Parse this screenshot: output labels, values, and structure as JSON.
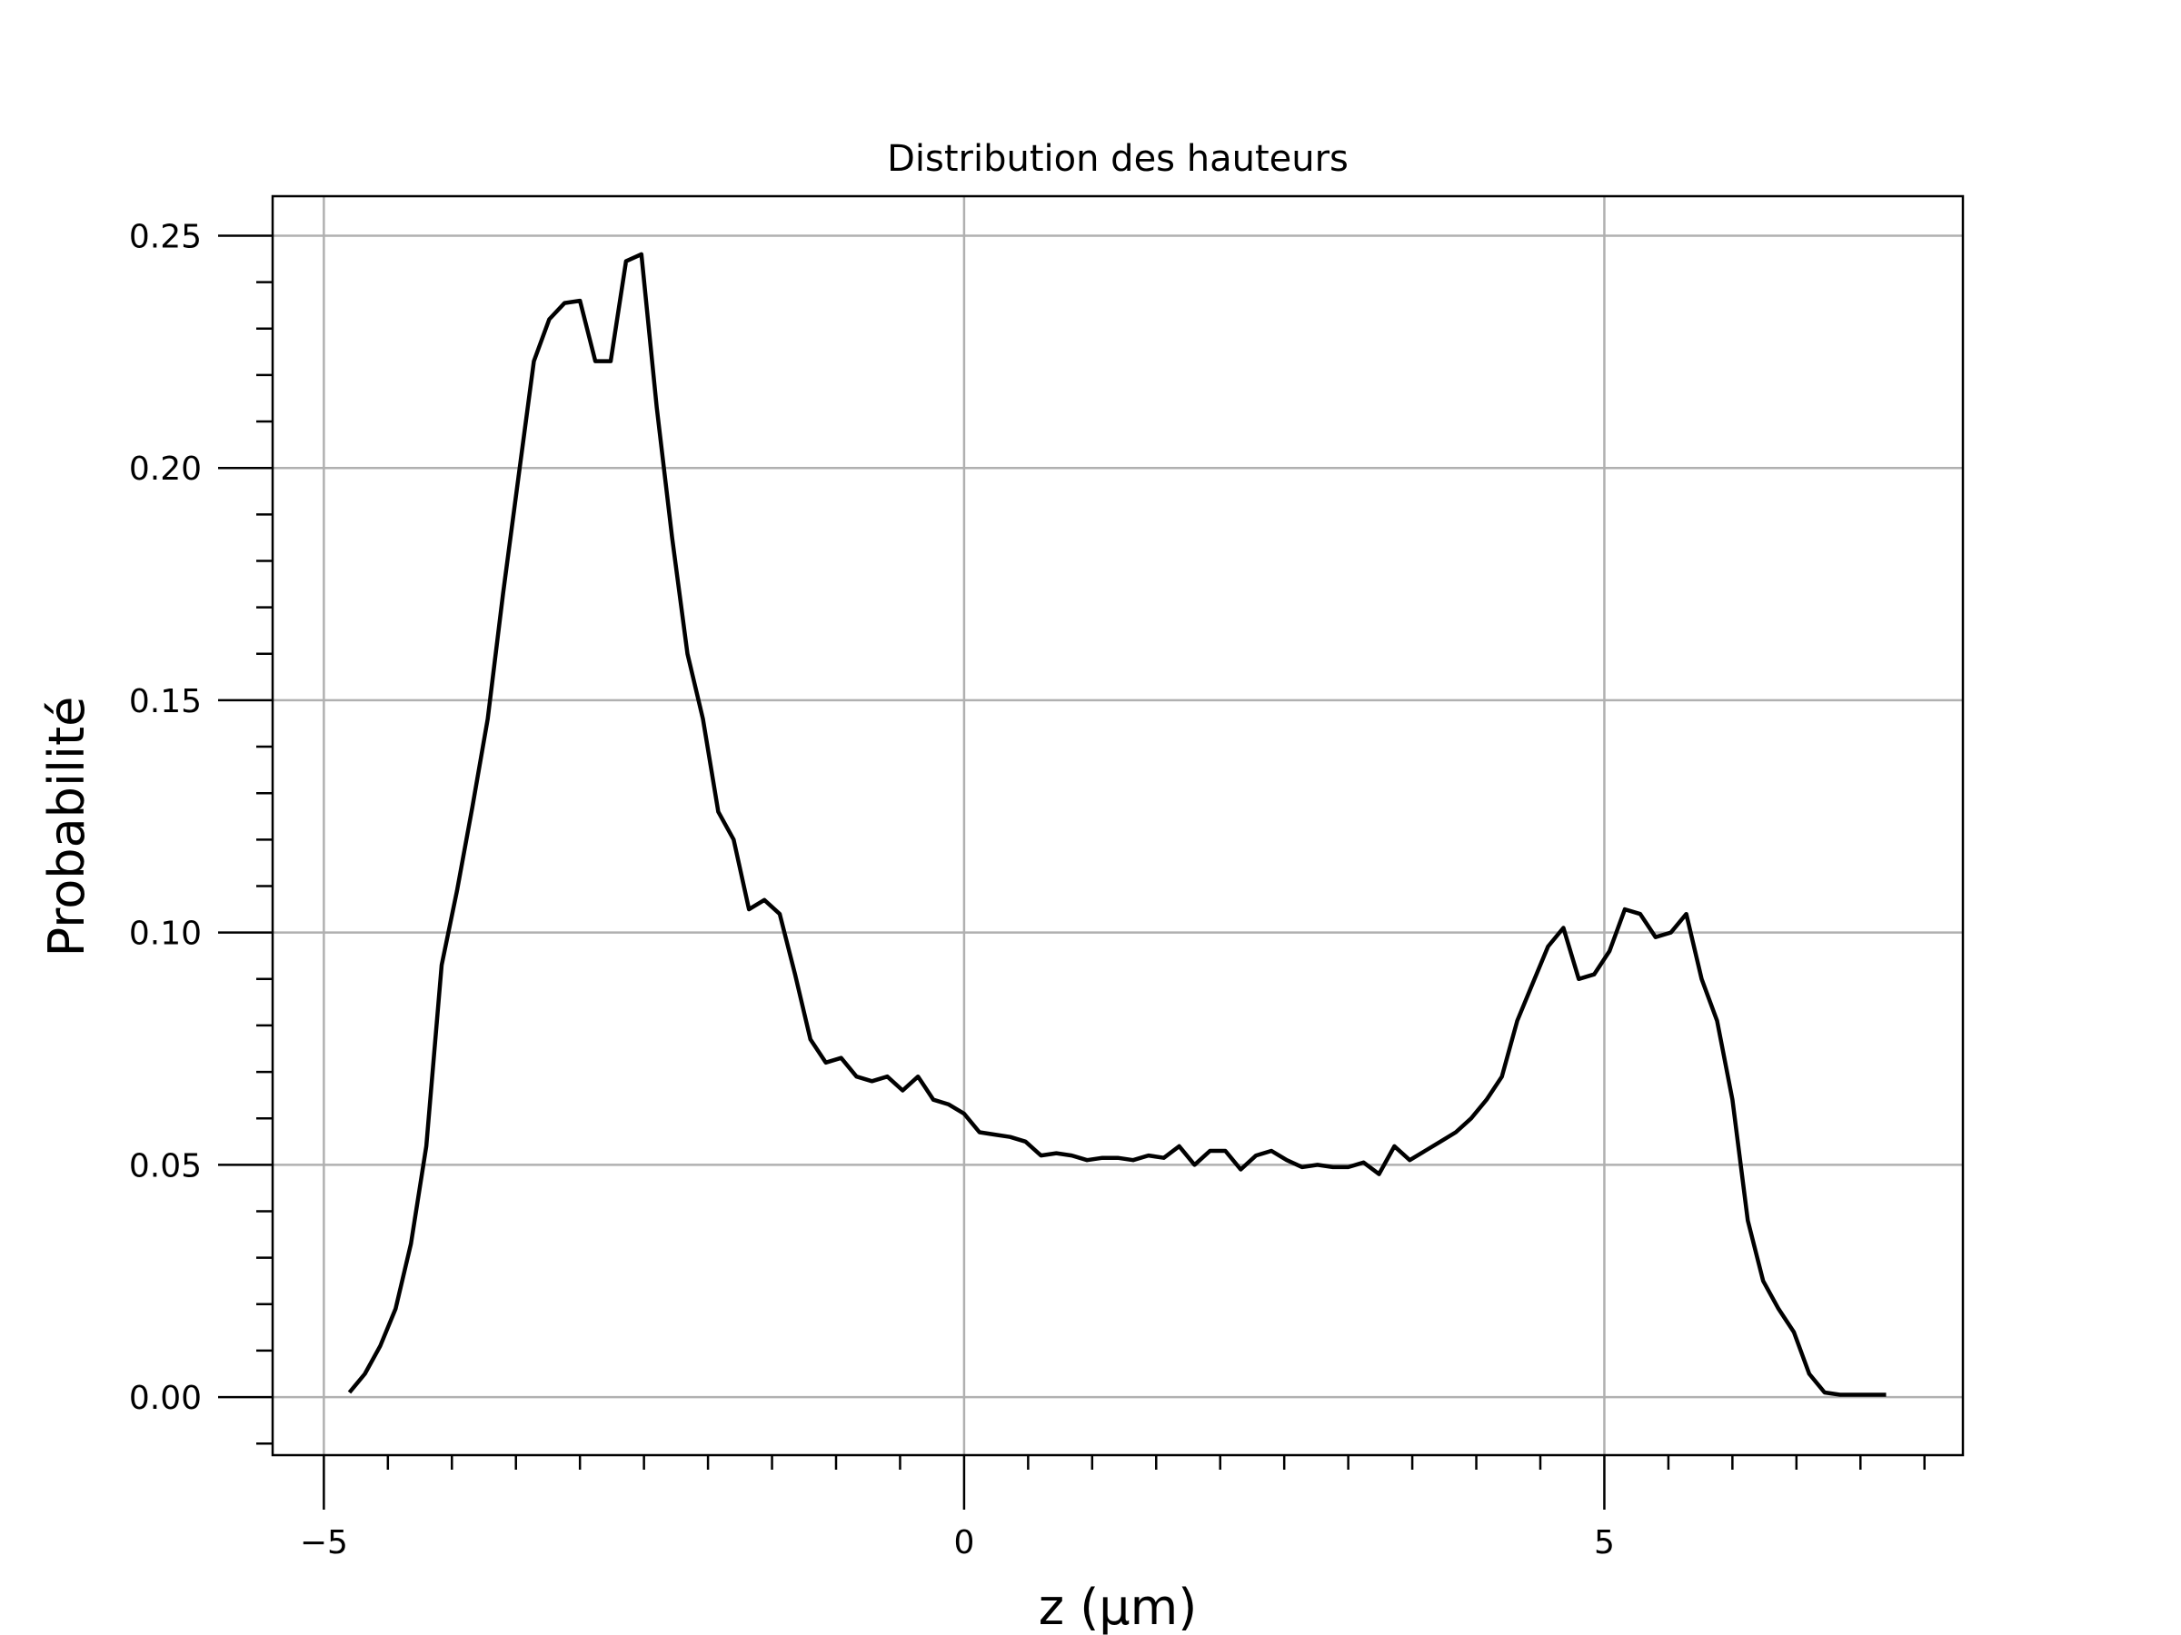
{
  "chart_data": {
    "type": "line",
    "title": "Distribution des hauteurs",
    "xlabel": "z (µm)",
    "ylabel": "Probabilité",
    "xlim": [
      -5.4,
      7.8
    ],
    "ylim": [
      -0.0125,
      0.2585
    ],
    "xticks_major": [
      -5,
      0,
      5
    ],
    "xtick_labels": [
      "−5",
      "0",
      "5"
    ],
    "xticks_minor_step": 0.5,
    "yticks_major": [
      0.0,
      0.05,
      0.1,
      0.15,
      0.2,
      0.25
    ],
    "ytick_labels": [
      "0.00",
      "0.05",
      "0.10",
      "0.15",
      "0.20",
      "0.25"
    ],
    "yticks_minor_step": 0.01,
    "grid": true,
    "color": "#000000",
    "series": [
      {
        "x": [
          -4.8,
          -4.68,
          -4.56,
          -4.44,
          -4.32,
          -4.2,
          -4.08,
          -3.96,
          -3.84,
          -3.72,
          -3.6,
          -3.48,
          -3.36,
          -3.24,
          -3.12,
          -3.0,
          -2.88,
          -2.76,
          -2.64,
          -2.52,
          -2.4,
          -2.28,
          -2.16,
          -2.04,
          -1.92,
          -1.8,
          -1.68,
          -1.56,
          -1.44,
          -1.32,
          -1.2,
          -1.08,
          -0.96,
          -0.84,
          -0.72,
          -0.6,
          -0.48,
          -0.36,
          -0.24,
          -0.12,
          0.0,
          0.12,
          0.24,
          0.36,
          0.48,
          0.6,
          0.72,
          0.84,
          0.96,
          1.08,
          1.2,
          1.32,
          1.44,
          1.56,
          1.68,
          1.8,
          1.92,
          2.04,
          2.16,
          2.28,
          2.4,
          2.52,
          2.64,
          2.76,
          2.88,
          3.0,
          3.12,
          3.24,
          3.36,
          3.48,
          3.6,
          3.72,
          3.84,
          3.96,
          4.08,
          4.2,
          4.32,
          4.44,
          4.56,
          4.68,
          4.8,
          4.92,
          5.04,
          5.16,
          5.28,
          5.4,
          5.52,
          5.64,
          5.76,
          5.88,
          6.0,
          6.12,
          6.24,
          6.36,
          6.48,
          6.6,
          6.72,
          6.84,
          6.96,
          7.08,
          7.2
        ],
        "y": [
          0.001,
          0.005,
          0.011,
          0.019,
          0.033,
          0.054,
          0.093,
          0.109,
          0.127,
          0.146,
          0.173,
          0.198,
          0.223,
          0.232,
          0.2355,
          0.236,
          0.223,
          0.223,
          0.2445,
          0.246,
          0.213,
          0.185,
          0.16,
          0.146,
          0.126,
          0.12,
          0.105,
          0.107,
          0.104,
          0.091,
          0.077,
          0.072,
          0.073,
          0.069,
          0.068,
          0.069,
          0.066,
          0.069,
          0.064,
          0.063,
          0.061,
          0.057,
          0.0565,
          0.056,
          0.055,
          0.052,
          0.0525,
          0.052,
          0.051,
          0.0515,
          0.0515,
          0.051,
          0.052,
          0.0515,
          0.054,
          0.05,
          0.053,
          0.053,
          0.049,
          0.052,
          0.053,
          0.051,
          0.0495,
          0.05,
          0.0495,
          0.0495,
          0.0505,
          0.048,
          0.054,
          0.051,
          0.053,
          0.055,
          0.057,
          0.06,
          0.064,
          0.069,
          0.081,
          0.089,
          0.097,
          0.101,
          0.09,
          0.091,
          0.096,
          0.105,
          0.104,
          0.099,
          0.1,
          0.104,
          0.09,
          0.081,
          0.064,
          0.038,
          0.025,
          0.019,
          0.014,
          0.005,
          0.001,
          0.0005,
          0.0005,
          0.0005,
          0.0005
        ]
      }
    ]
  }
}
